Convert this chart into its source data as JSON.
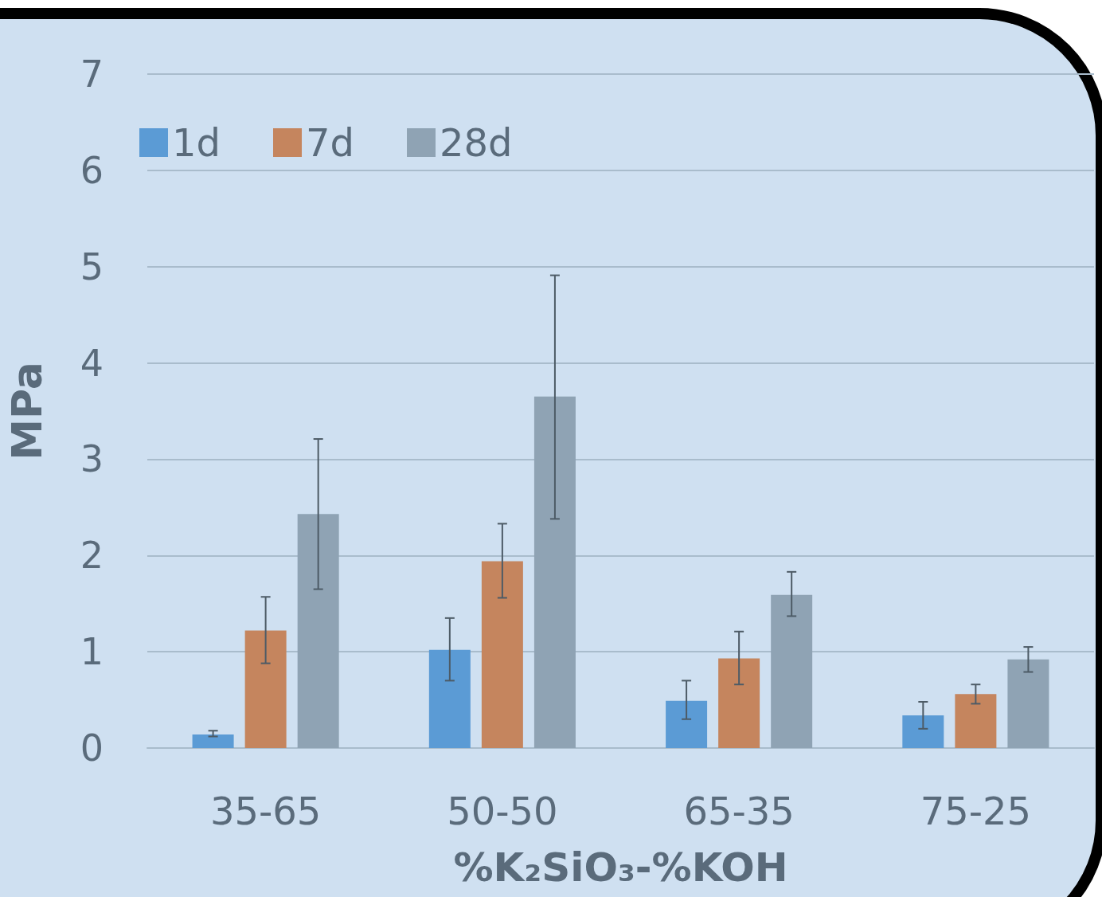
{
  "chart_data": {
    "type": "bar",
    "xlabel": "%K₂SiO₃-%KOH",
    "ylabel": "MPa",
    "categories": [
      "35-65",
      "50-50",
      "65-35",
      "75-25"
    ],
    "series": [
      {
        "name": "1d",
        "color": "#5b9bd5",
        "values": [
          0.14,
          1.02,
          0.49,
          0.34
        ],
        "errors": [
          [
            0.12,
            0.18
          ],
          [
            0.7,
            1.35
          ],
          [
            0.3,
            0.7
          ],
          [
            0.2,
            0.48
          ]
        ]
      },
      {
        "name": "7d",
        "color": "#c5855e",
        "values": [
          1.22,
          1.94,
          0.93,
          0.56
        ],
        "errors": [
          [
            0.88,
            1.57
          ],
          [
            1.56,
            2.33
          ],
          [
            0.66,
            1.21
          ],
          [
            0.46,
            0.66
          ]
        ]
      },
      {
        "name": "28d",
        "color": "#8fa3b4",
        "values": [
          2.43,
          3.65,
          1.59,
          0.92
        ],
        "errors": [
          [
            1.65,
            3.21
          ],
          [
            2.38,
            4.91
          ],
          [
            1.37,
            1.83
          ],
          [
            0.79,
            1.05
          ]
        ]
      }
    ],
    "ylim": [
      0,
      7
    ],
    "yticks": [
      0,
      1,
      2,
      3,
      4,
      5,
      6,
      7
    ],
    "grid": "y",
    "legend": "top left"
  }
}
